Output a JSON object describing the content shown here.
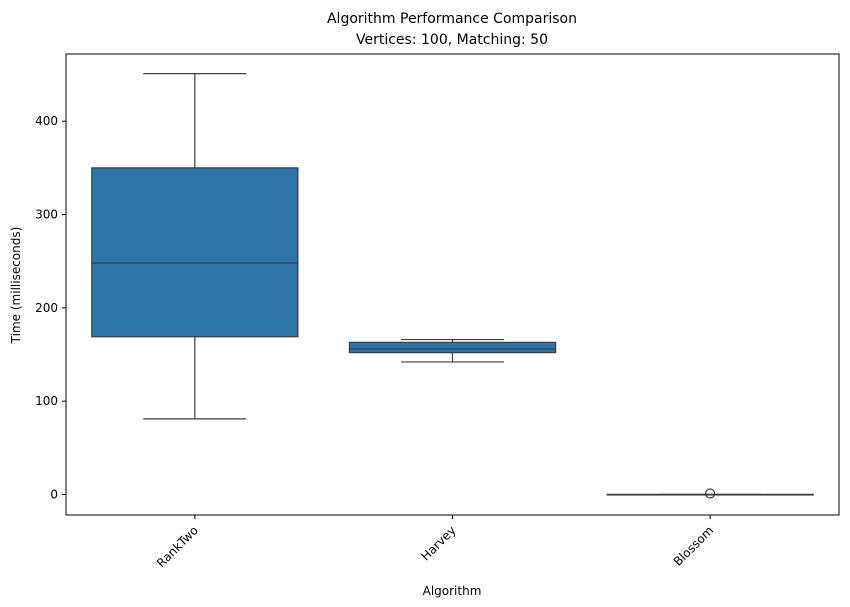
{
  "chart_data": {
    "type": "box",
    "title": "Algorithm Performance Comparison",
    "subtitle": "Vertices: 100, Matching: 50",
    "xlabel": "Algorithm",
    "ylabel": "Time (milliseconds)",
    "categories": [
      "RankTwo",
      "Harvey",
      "Blossom"
    ],
    "ylim": [
      -22,
      472
    ],
    "yticks": [
      0,
      100,
      200,
      300,
      400
    ],
    "grid": false,
    "legend": "none",
    "box_color": "#2e74a6",
    "line_color": "#3d3d3d",
    "boxes": [
      {
        "category": "RankTwo",
        "whislo": 81,
        "q1": 169,
        "med": 248,
        "q3": 350,
        "whishi": 451,
        "fliers": []
      },
      {
        "category": "Harvey",
        "whislo": 142,
        "q1": 152,
        "med": 156,
        "q3": 163,
        "whishi": 166,
        "fliers": []
      },
      {
        "category": "Blossom",
        "whislo": 0,
        "q1": 0,
        "med": 0,
        "q3": 0,
        "whishi": 0,
        "fliers": [
          1
        ]
      }
    ]
  }
}
